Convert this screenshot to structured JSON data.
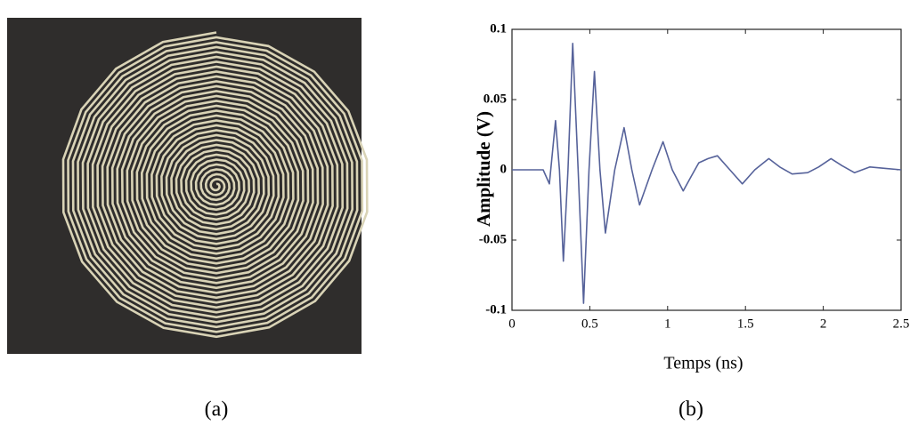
{
  "captions": [
    "(a)",
    "(b)"
  ],
  "chart_data": {
    "type": "line",
    "x_label": "Temps (ns)",
    "y_label": "Amplitude (V)",
    "x": [
      0,
      0.1,
      0.2,
      0.24,
      0.28,
      0.305,
      0.33,
      0.36,
      0.39,
      0.425,
      0.46,
      0.495,
      0.53,
      0.565,
      0.6,
      0.66,
      0.72,
      0.77,
      0.82,
      0.9,
      0.97,
      1.03,
      1.1,
      1.15,
      1.2,
      1.26,
      1.32,
      1.4,
      1.48,
      1.56,
      1.65,
      1.72,
      1.8,
      1.9,
      1.97,
      2.05,
      2.12,
      2.2,
      2.3,
      2.4,
      2.5
    ],
    "values": [
      0,
      0,
      0,
      -0.01,
      0.035,
      0,
      -0.065,
      0,
      0.09,
      0,
      -0.095,
      0,
      0.07,
      0,
      -0.045,
      0,
      0.03,
      0,
      -0.025,
      0,
      0.02,
      0,
      -0.015,
      -0.005,
      0.005,
      0.008,
      0.01,
      0,
      -0.01,
      0,
      0.008,
      0.002,
      -0.003,
      -0.002,
      0.002,
      0.008,
      0.003,
      -0.002,
      0.002,
      0.001,
      0
    ],
    "color": "#56629a",
    "xlim": [
      0,
      2.5
    ],
    "xticks": [
      0,
      0.5,
      1,
      1.5,
      2,
      2.5
    ],
    "ylim": [
      -0.1,
      0.1
    ],
    "yticks": [
      -0.1,
      -0.05,
      0,
      0.05,
      0.1
    ]
  }
}
